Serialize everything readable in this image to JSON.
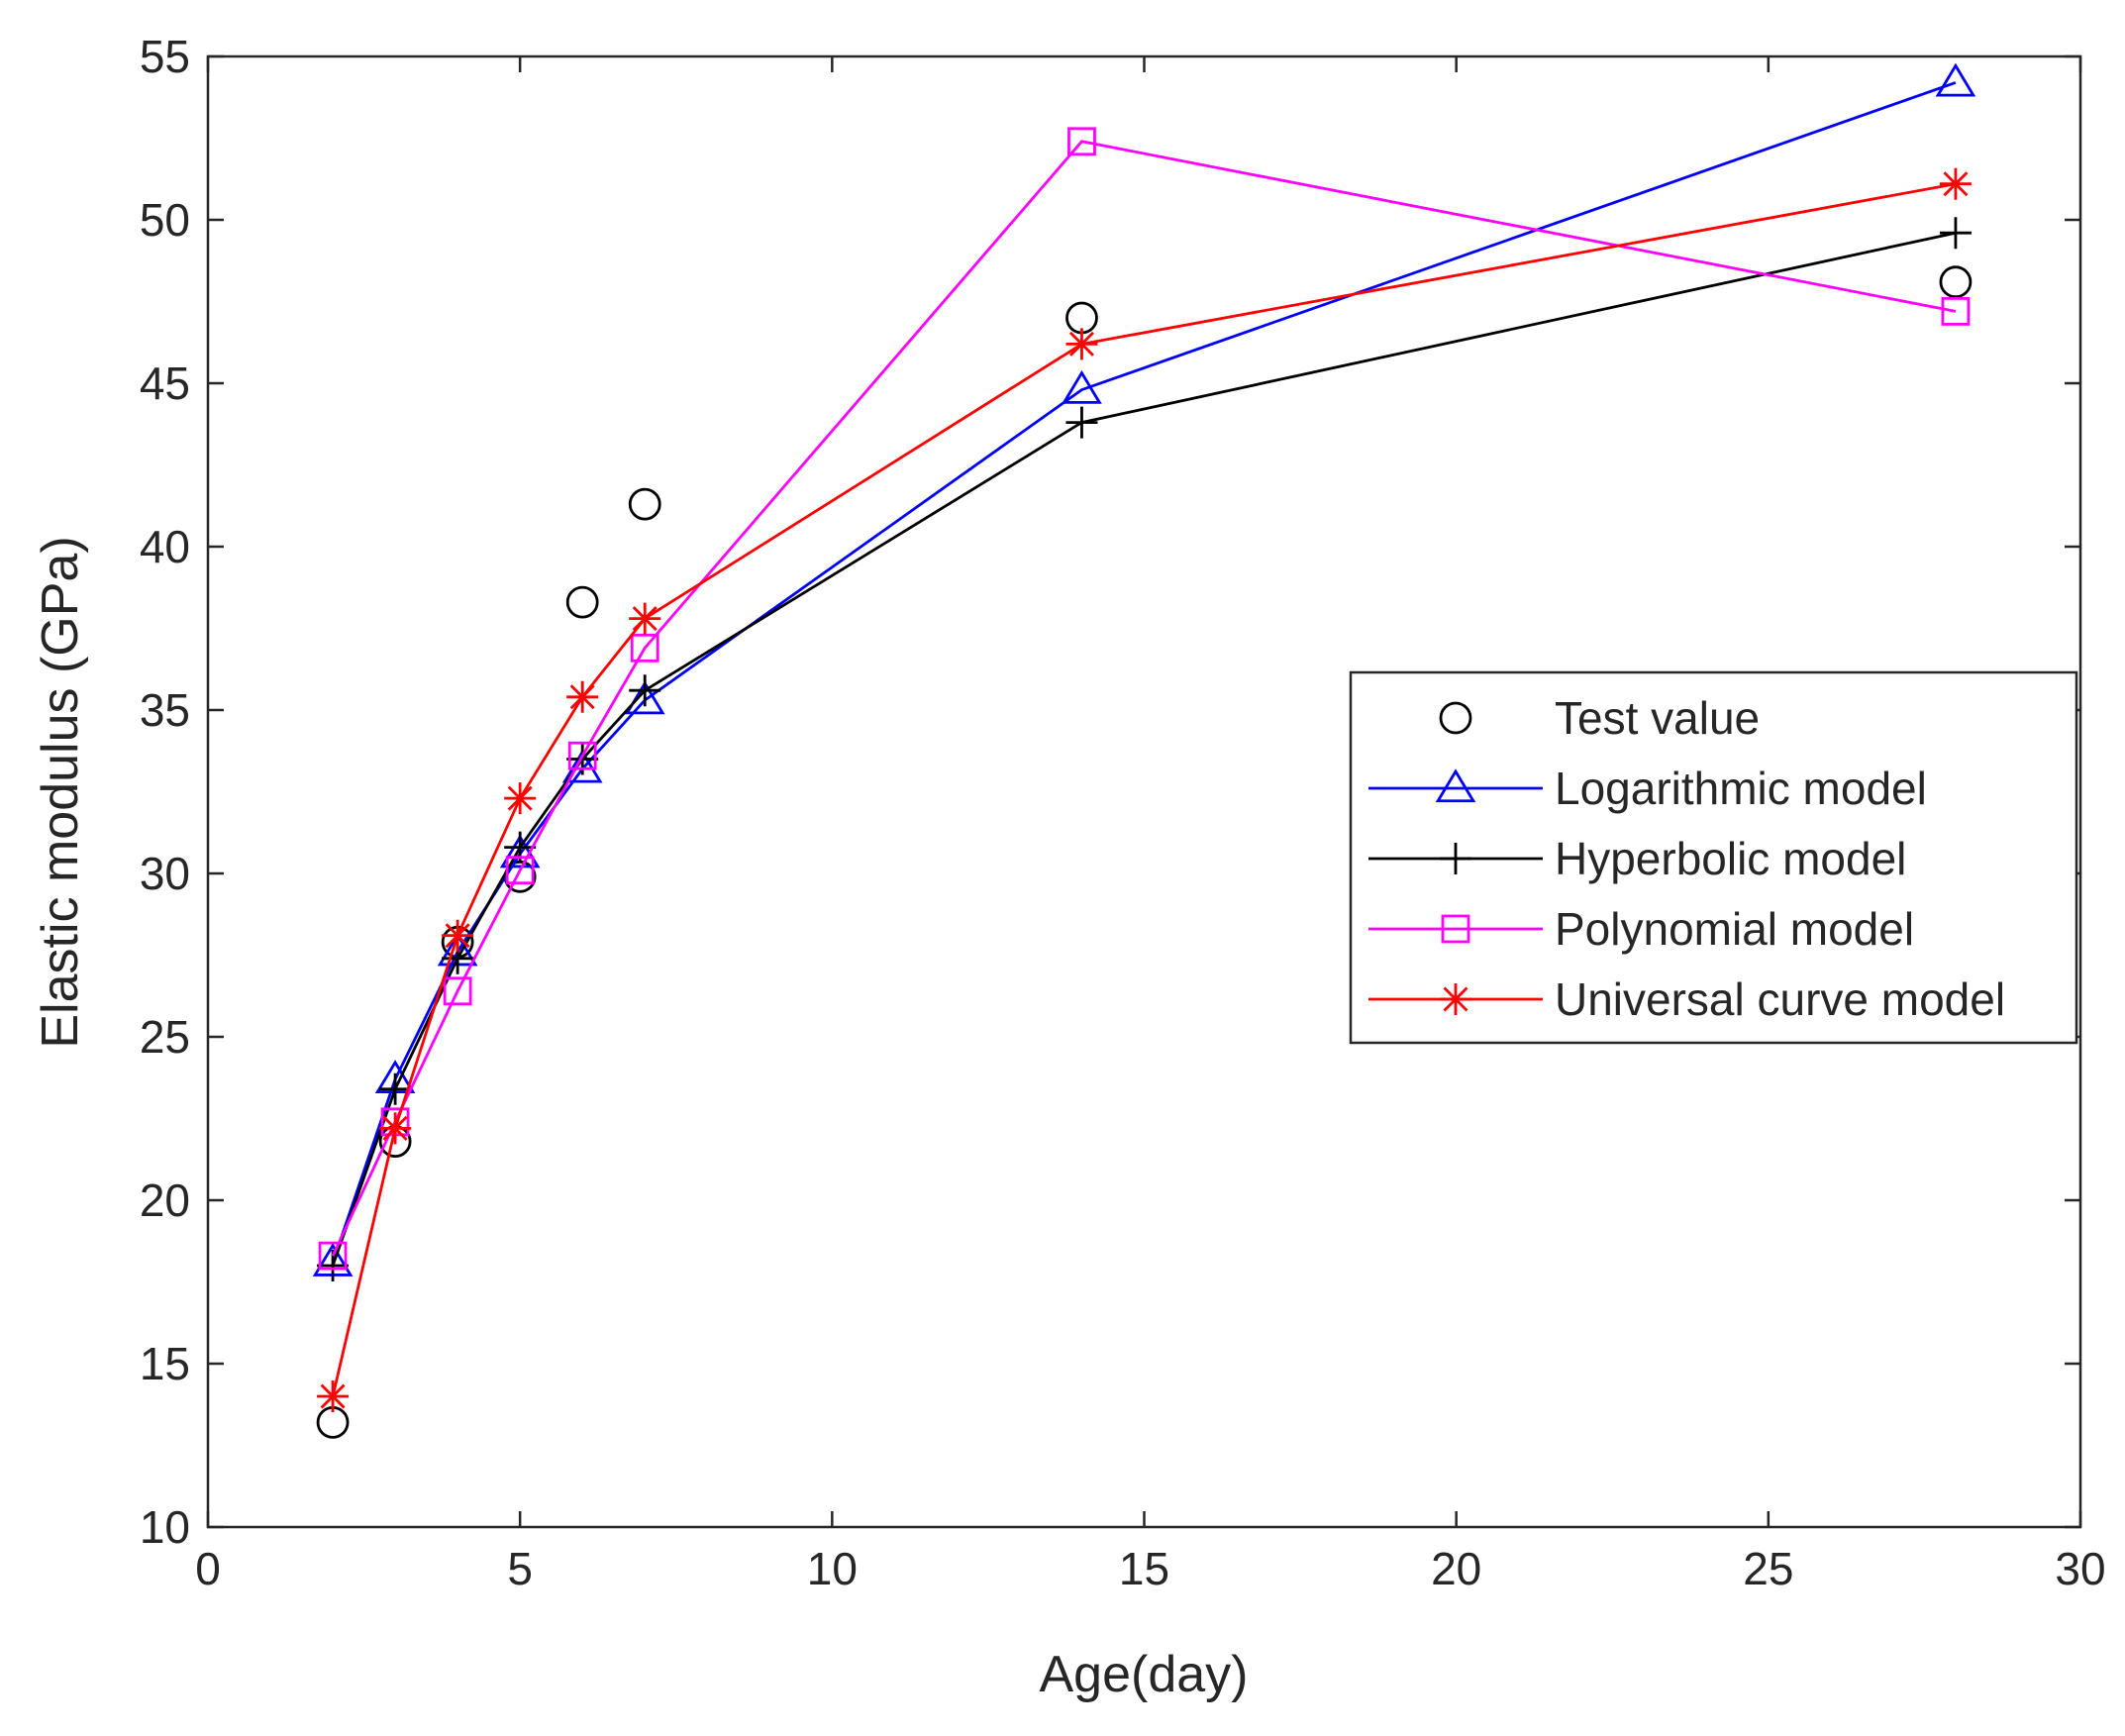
{
  "chart_data": {
    "type": "line",
    "title": "",
    "xlabel": "Age(day)",
    "ylabel": "Elastic modulus (GPa)",
    "xlim": [
      0,
      30
    ],
    "ylim": [
      10,
      55
    ],
    "xticks": [
      0,
      5,
      10,
      15,
      20,
      25,
      30
    ],
    "yticks": [
      10,
      15,
      20,
      25,
      30,
      35,
      40,
      45,
      50,
      55
    ],
    "grid": false,
    "legend_position": "right",
    "x": [
      2,
      3,
      4,
      5,
      6,
      7,
      14,
      28
    ],
    "series": [
      {
        "name": "Test value",
        "marker": "circle",
        "line": false,
        "color": "#000000",
        "values": [
          13.2,
          21.8,
          27.9,
          29.9,
          38.3,
          41.3,
          47.0,
          48.1
        ]
      },
      {
        "name": "Logarithmic model",
        "marker": "triangle",
        "line": true,
        "color": "#0000ff",
        "values": [
          18.1,
          23.7,
          27.6,
          30.6,
          33.2,
          35.3,
          44.8,
          54.2
        ]
      },
      {
        "name": "Hyperbolic model",
        "marker": "plus",
        "line": true,
        "color": "#000000",
        "values": [
          18.0,
          23.4,
          27.4,
          30.8,
          33.5,
          35.6,
          43.8,
          49.6
        ]
      },
      {
        "name": "Polynomial model",
        "marker": "square",
        "line": true,
        "color": "#ff00ff",
        "values": [
          18.3,
          22.4,
          26.4,
          30.1,
          33.6,
          36.9,
          52.4,
          47.2
        ]
      },
      {
        "name": "Universal curve model",
        "marker": "asterisk",
        "line": true,
        "color": "#ff0000",
        "values": [
          14.0,
          22.2,
          28.1,
          32.3,
          35.4,
          37.8,
          46.2,
          51.1
        ]
      }
    ]
  }
}
